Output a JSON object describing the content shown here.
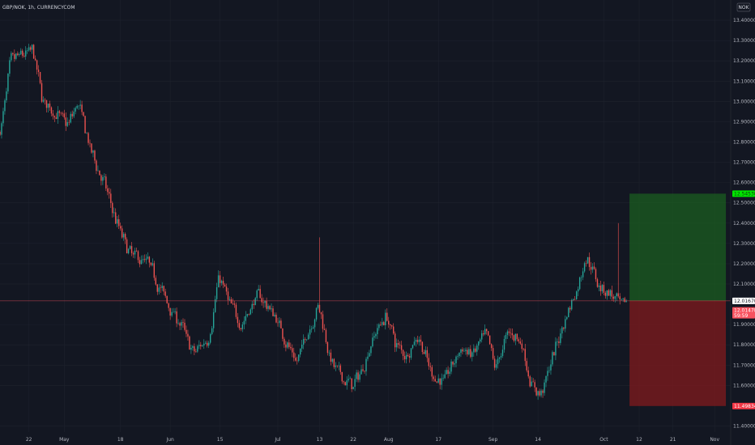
{
  "header": {
    "symbol": "GBP/NOK, 1h, CURRENCYCOM"
  },
  "currency_button": "NOK",
  "colors": {
    "background": "#131722",
    "grid": "#1e222d",
    "up": "#26a69a",
    "down": "#ef5350",
    "axis_text": "#b2b5be",
    "profit_zone": "#1b5e20",
    "loss_zone": "#7a1a1e",
    "target_tag": "#00e600",
    "stop_tag": "#f23645",
    "price_tag": "#f7525f"
  },
  "chart_data": {
    "type": "candlestick",
    "title": "",
    "xlabel": "",
    "ylabel": "",
    "ylim": [
      11.37,
      13.5
    ],
    "y_ticks": [
      {
        "value": 13.4,
        "label": "13.40000"
      },
      {
        "value": 13.3,
        "label": "13.30000"
      },
      {
        "value": 13.2,
        "label": "13.20000"
      },
      {
        "value": 13.1,
        "label": "13.10000"
      },
      {
        "value": 13.0,
        "label": "13.00000"
      },
      {
        "value": 12.9,
        "label": "12.90000"
      },
      {
        "value": 12.8,
        "label": "12.80000"
      },
      {
        "value": 12.7,
        "label": "12.70000"
      },
      {
        "value": 12.6,
        "label": "12.60000"
      },
      {
        "value": 12.5,
        "label": "12.50000"
      },
      {
        "value": 12.4,
        "label": "12.40000"
      },
      {
        "value": 12.3,
        "label": "12.30000"
      },
      {
        "value": 12.2,
        "label": "12.20000"
      },
      {
        "value": 12.1,
        "label": "12.10000"
      },
      {
        "value": 11.9,
        "label": "11.90000"
      },
      {
        "value": 11.8,
        "label": "11.80000"
      },
      {
        "value": 11.7,
        "label": "11.70000"
      },
      {
        "value": 11.6,
        "label": "11.60000"
      },
      {
        "value": 11.4,
        "label": "11.40000"
      }
    ],
    "x_ticks": [
      {
        "label": "22",
        "bar": 18
      },
      {
        "label": "May",
        "bar": 40
      },
      {
        "label": "18",
        "bar": 75
      },
      {
        "label": "Jun",
        "bar": 106
      },
      {
        "label": "15",
        "bar": 137
      },
      {
        "label": "Jul",
        "bar": 173
      },
      {
        "label": "13",
        "bar": 199
      },
      {
        "label": "22",
        "bar": 220
      },
      {
        "label": "Aug",
        "bar": 242
      },
      {
        "label": "17",
        "bar": 273
      },
      {
        "label": "Sep",
        "bar": 307
      },
      {
        "label": "14",
        "bar": 335
      },
      {
        "label": "Oct",
        "bar": 376
      },
      {
        "label": "12",
        "bar": 398
      },
      {
        "label": "21",
        "bar": 419
      },
      {
        "label": "Nov",
        "bar": 445
      }
    ],
    "price_path": [
      [
        0,
        12.85
      ],
      [
        6,
        13.2
      ],
      [
        20,
        13.25
      ],
      [
        26,
        13.0
      ],
      [
        42,
        12.88
      ],
      [
        48,
        13.0
      ],
      [
        56,
        12.75
      ],
      [
        64,
        12.6
      ],
      [
        72,
        12.4
      ],
      [
        80,
        12.25
      ],
      [
        92,
        12.2
      ],
      [
        104,
        12.0
      ],
      [
        112,
        11.9
      ],
      [
        120,
        11.75
      ],
      [
        130,
        11.85
      ],
      [
        136,
        12.15
      ],
      [
        142,
        12.0
      ],
      [
        150,
        11.9
      ],
      [
        160,
        12.05
      ],
      [
        170,
        11.95
      ],
      [
        176,
        11.85
      ],
      [
        184,
        11.7
      ],
      [
        190,
        11.85
      ],
      [
        198,
        12.0
      ],
      [
        206,
        11.7
      ],
      [
        214,
        11.62
      ],
      [
        220,
        11.6
      ],
      [
        226,
        11.7
      ],
      [
        232,
        11.85
      ],
      [
        240,
        11.95
      ],
      [
        246,
        11.8
      ],
      [
        252,
        11.75
      ],
      [
        260,
        11.85
      ],
      [
        268,
        11.65
      ],
      [
        276,
        11.62
      ],
      [
        286,
        11.78
      ],
      [
        294,
        11.75
      ],
      [
        302,
        11.85
      ],
      [
        308,
        11.68
      ],
      [
        316,
        11.87
      ],
      [
        324,
        11.82
      ],
      [
        330,
        11.6
      ],
      [
        336,
        11.55
      ],
      [
        344,
        11.75
      ],
      [
        352,
        11.95
      ],
      [
        360,
        12.1
      ],
      [
        364,
        12.25
      ],
      [
        372,
        12.1
      ],
      [
        380,
        12.05
      ],
      [
        386,
        11.98
      ],
      [
        390,
        12.02
      ]
    ],
    "spikes": [
      {
        "bar": 199,
        "high": 12.33
      },
      {
        "bar": 385,
        "high": 12.4
      }
    ],
    "last_bar": 390,
    "x_bar_range": [
      0,
      455
    ],
    "position": {
      "type": "long",
      "entry": 12.0167,
      "target": 12.5453,
      "stop": 11.4983,
      "start_bar": 392,
      "end_bar": 452
    },
    "price_tags": [
      {
        "name": "target-price-tag",
        "value": 12.5453,
        "label": "12.54530",
        "kind": "target"
      },
      {
        "name": "entry-price-tag",
        "value": 12.0167,
        "label": "12.01670",
        "kind": "entry"
      },
      {
        "name": "last-price-tag",
        "value": 11.97,
        "label": "12.01478",
        "sub": "59:59",
        "kind": "last"
      },
      {
        "name": "stop-price-tag",
        "value": 11.4983,
        "label": "11.49834",
        "kind": "stop"
      }
    ]
  }
}
